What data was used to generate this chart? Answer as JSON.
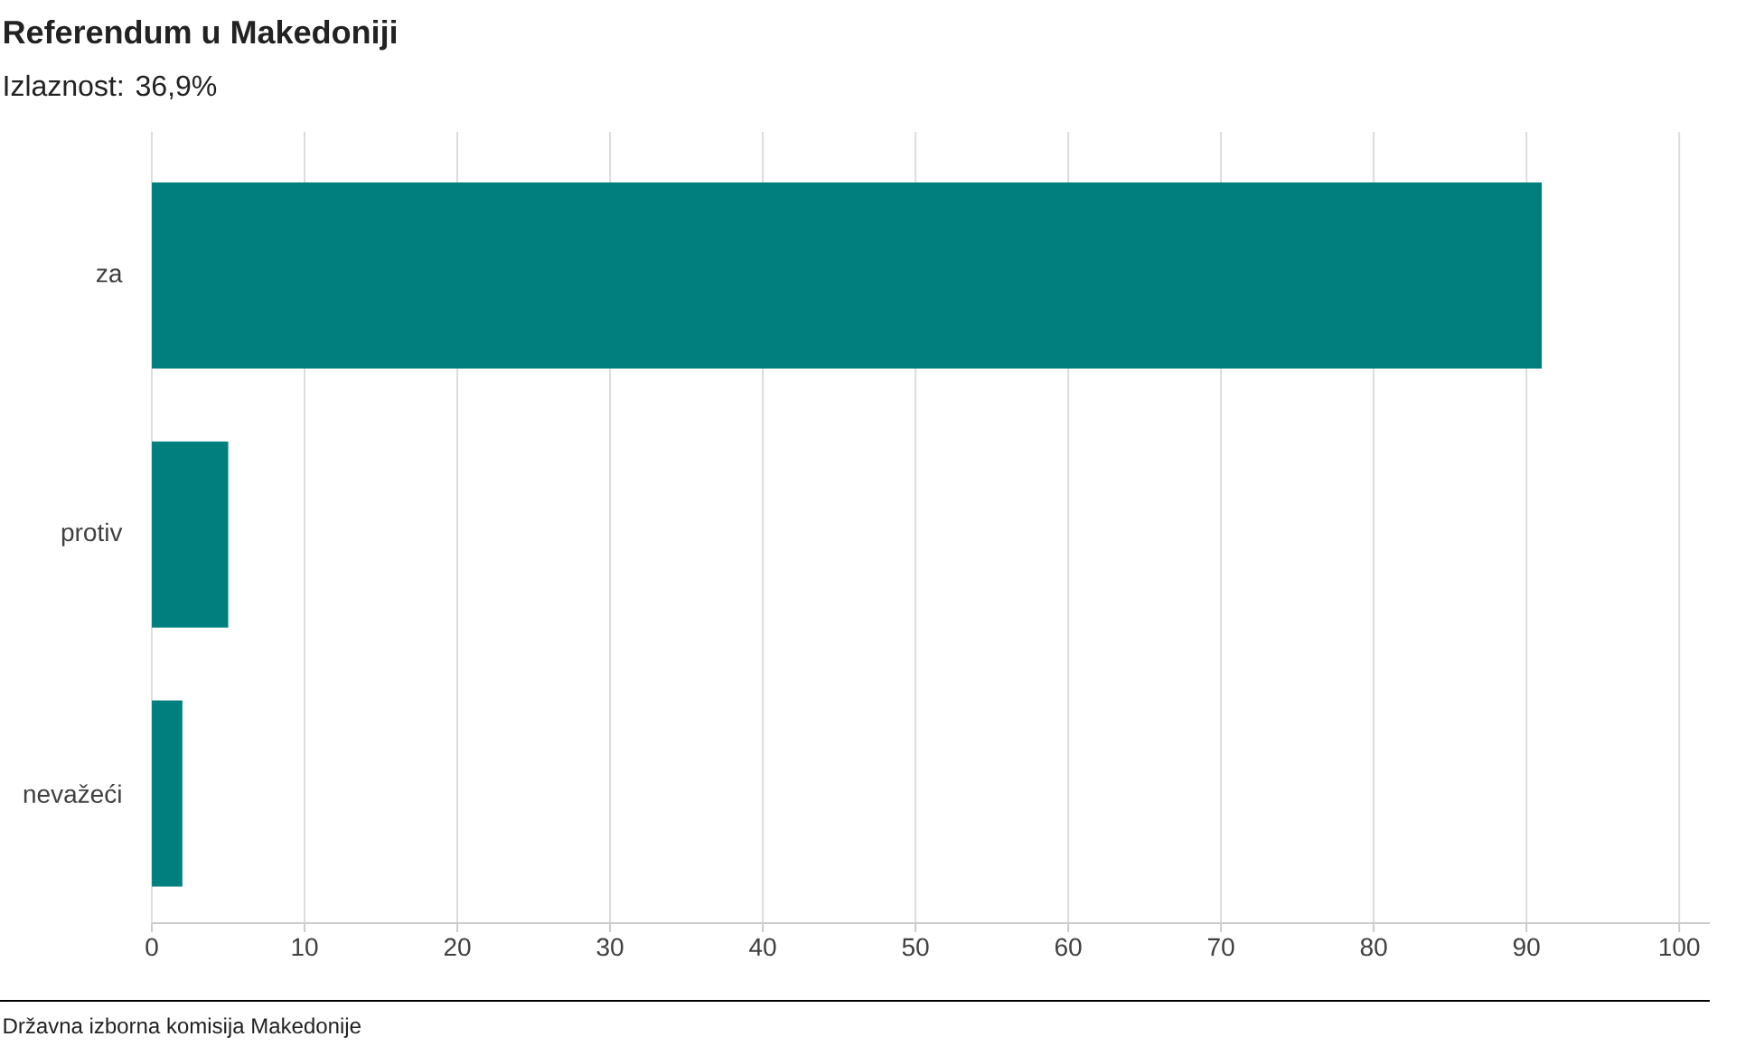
{
  "chart_data": {
    "type": "bar",
    "orientation": "horizontal",
    "title": "Referendum u Makedoniji",
    "subtitle": "Izlaznost: 36,9%",
    "categories": [
      "za",
      "protiv",
      "nevažeći"
    ],
    "values": [
      91,
      5,
      2
    ],
    "color": "#007f7f",
    "xlim": [
      0,
      102
    ],
    "xticks": [
      0,
      10,
      20,
      30,
      40,
      50,
      60,
      70,
      80,
      90,
      100
    ],
    "grid": "x",
    "annotations": [
      "Državna izborna komisija Makedonije"
    ]
  }
}
